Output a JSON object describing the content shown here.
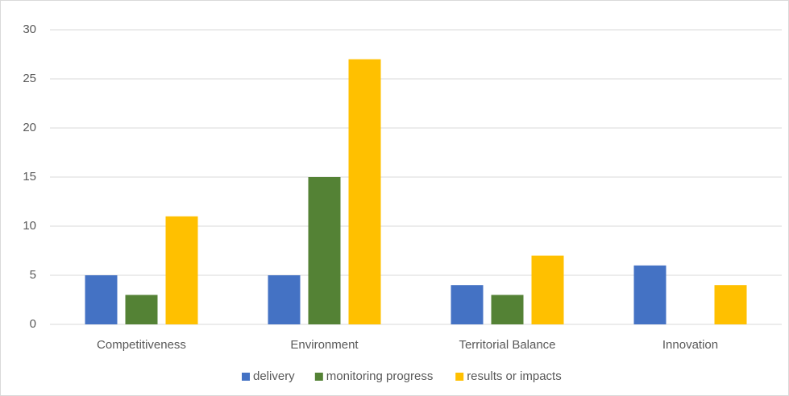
{
  "chart_data": {
    "type": "bar",
    "categories": [
      "Competitiveness",
      "Environment",
      "Territorial Balance",
      "Innovation"
    ],
    "series": [
      {
        "name": "delivery",
        "color": "#4472c4",
        "values": [
          5,
          5,
          4,
          6
        ]
      },
      {
        "name": "monitoring progress",
        "color": "#548235",
        "values": [
          3,
          15,
          3,
          0
        ]
      },
      {
        "name": "results or impacts",
        "color": "#ffc000",
        "values": [
          11,
          27,
          7,
          4
        ]
      }
    ],
    "ylim": [
      0,
      30
    ],
    "yticks": [
      0,
      5,
      10,
      15,
      20,
      25,
      30
    ],
    "grid": true,
    "legend": "bottom"
  }
}
